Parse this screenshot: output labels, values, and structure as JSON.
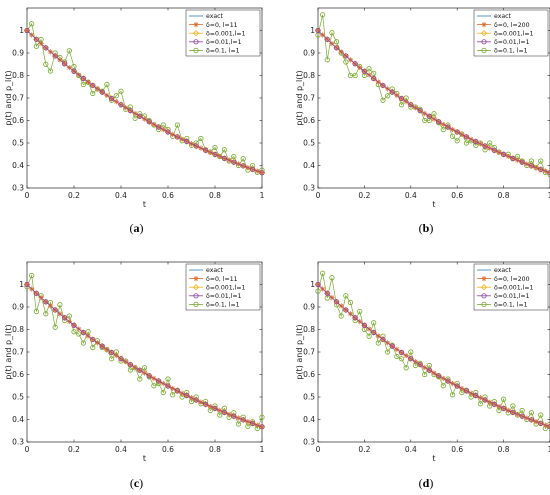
{
  "chart_data": [
    {
      "type": "line",
      "caption": "a",
      "xlabel": "t",
      "ylabel": "p(t) and p_l(t)",
      "xlim": [
        0,
        1
      ],
      "ylim": [
        0.3,
        1.1
      ],
      "x_ticks": [
        "0",
        "0.2",
        "0.4",
        "0.6",
        "0.8",
        "1"
      ],
      "y_ticks": [
        "0.3",
        "0.4",
        "0.5",
        "0.6",
        "0.7",
        "0.8",
        "0.9",
        "1"
      ],
      "legend_position": "top-right",
      "series": [
        {
          "name": "exact",
          "color": "#2f7fc1",
          "marker": "none",
          "function": "exp(-t)",
          "x": [
            0,
            0.2,
            0.4,
            0.6,
            0.8,
            1
          ],
          "values": [
            1,
            0.819,
            0.67,
            0.549,
            0.449,
            0.368
          ]
        },
        {
          "name": "δ=0, l=11",
          "color": "#e06a2b",
          "marker": "asterisk",
          "x": [
            0,
            0.2,
            0.4,
            0.6,
            0.8,
            1
          ],
          "values": [
            1,
            0.819,
            0.67,
            0.549,
            0.449,
            0.368
          ]
        },
        {
          "name": "δ=0.001,l=1",
          "color": "#f2b51e",
          "marker": "diamond",
          "x": [
            0,
            0.2,
            0.4,
            0.6,
            0.8,
            1
          ],
          "values": [
            1,
            0.819,
            0.67,
            0.549,
            0.449,
            0.368
          ]
        },
        {
          "name": "δ=0.01,l=1",
          "color": "#8e3fa1",
          "marker": "circle",
          "x": [
            0,
            0.2,
            0.4,
            0.6,
            0.8,
            1
          ],
          "values": [
            1,
            0.819,
            0.67,
            0.549,
            0.449,
            0.368
          ]
        },
        {
          "name": "δ=0.1, l=1",
          "color": "#77ac30",
          "marker": "circle",
          "x": [
            0,
            0.02,
            0.04,
            0.06,
            0.08,
            0.1,
            0.12,
            0.14,
            0.16,
            0.18,
            0.2,
            0.22,
            0.24,
            0.26,
            0.28,
            0.3,
            0.32,
            0.34,
            0.36,
            0.38,
            0.4,
            0.42,
            0.44,
            0.46,
            0.48,
            0.5,
            0.52,
            0.54,
            0.56,
            0.58,
            0.6,
            0.62,
            0.64,
            0.66,
            0.68,
            0.7,
            0.72,
            0.74,
            0.76,
            0.78,
            0.8,
            0.82,
            0.84,
            0.86,
            0.88,
            0.9,
            0.92,
            0.94,
            0.96,
            0.98,
            1
          ],
          "values": [
            1.0,
            1.03,
            0.93,
            0.96,
            0.85,
            0.82,
            0.9,
            0.88,
            0.86,
            0.91,
            0.84,
            0.8,
            0.76,
            0.77,
            0.72,
            0.74,
            0.73,
            0.76,
            0.69,
            0.71,
            0.73,
            0.65,
            0.66,
            0.61,
            0.63,
            0.62,
            0.6,
            0.58,
            0.56,
            0.58,
            0.56,
            0.53,
            0.58,
            0.51,
            0.52,
            0.49,
            0.5,
            0.52,
            0.47,
            0.46,
            0.48,
            0.44,
            0.47,
            0.42,
            0.44,
            0.4,
            0.43,
            0.38,
            0.4,
            0.37,
            0.38
          ]
        }
      ]
    },
    {
      "type": "line",
      "caption": "b",
      "xlabel": "t",
      "ylabel": "p(t) and p_l(t)",
      "xlim": [
        0,
        1
      ],
      "ylim": [
        0.3,
        1.1
      ],
      "x_ticks": [
        "0",
        "0.2",
        "0.4",
        "0.6",
        "0.8",
        "1"
      ],
      "y_ticks": [
        "0.3",
        "0.4",
        "0.5",
        "0.6",
        "0.7",
        "0.8",
        "0.9",
        "1"
      ],
      "legend_position": "top-right",
      "series": [
        {
          "name": "exact",
          "color": "#2f7fc1",
          "marker": "none",
          "function": "exp(-t)",
          "x": [
            0,
            0.2,
            0.4,
            0.6,
            0.8,
            1
          ],
          "values": [
            1,
            0.819,
            0.67,
            0.549,
            0.449,
            0.368
          ]
        },
        {
          "name": "δ=0, l=200",
          "color": "#e06a2b",
          "marker": "asterisk",
          "x": [
            0,
            0.2,
            0.4,
            0.6,
            0.8,
            1
          ],
          "values": [
            1,
            0.819,
            0.67,
            0.549,
            0.449,
            0.368
          ]
        },
        {
          "name": "δ=0.001,l=1",
          "color": "#f2b51e",
          "marker": "diamond",
          "x": [
            0,
            0.2,
            0.4,
            0.6,
            0.8,
            1
          ],
          "values": [
            1,
            0.819,
            0.67,
            0.549,
            0.449,
            0.368
          ]
        },
        {
          "name": "δ=0.01,l=1",
          "color": "#8e3fa1",
          "marker": "circle",
          "x": [
            0,
            0.2,
            0.4,
            0.6,
            0.8,
            1
          ],
          "values": [
            1,
            0.819,
            0.67,
            0.549,
            0.449,
            0.368
          ]
        },
        {
          "name": "δ=0.1, l=1",
          "color": "#77ac30",
          "marker": "circle",
          "x": [
            0,
            0.02,
            0.04,
            0.06,
            0.08,
            0.1,
            0.12,
            0.14,
            0.16,
            0.18,
            0.2,
            0.22,
            0.24,
            0.26,
            0.28,
            0.3,
            0.32,
            0.34,
            0.36,
            0.38,
            0.4,
            0.42,
            0.44,
            0.46,
            0.48,
            0.5,
            0.52,
            0.54,
            0.56,
            0.58,
            0.6,
            0.62,
            0.64,
            0.66,
            0.68,
            0.7,
            0.72,
            0.74,
            0.76,
            0.78,
            0.8,
            0.82,
            0.84,
            0.86,
            0.88,
            0.9,
            0.92,
            0.94,
            0.96,
            0.98,
            1
          ],
          "values": [
            0.98,
            1.07,
            0.87,
            0.99,
            0.95,
            0.9,
            0.86,
            0.8,
            0.8,
            0.84,
            0.8,
            0.83,
            0.81,
            0.76,
            0.69,
            0.71,
            0.74,
            0.72,
            0.67,
            0.7,
            0.66,
            0.66,
            0.65,
            0.6,
            0.6,
            0.63,
            0.59,
            0.56,
            0.58,
            0.53,
            0.51,
            0.54,
            0.5,
            0.51,
            0.49,
            0.5,
            0.47,
            0.5,
            0.48,
            0.46,
            0.45,
            0.45,
            0.43,
            0.44,
            0.42,
            0.4,
            0.42,
            0.39,
            0.42,
            0.37,
            0.36
          ]
        }
      ]
    },
    {
      "type": "line",
      "caption": "c",
      "xlabel": "t",
      "ylabel": "p(t) and p_l(t)",
      "xlim": [
        0,
        1
      ],
      "ylim": [
        0.3,
        1.1
      ],
      "x_ticks": [
        "0",
        "0.2",
        "0.4",
        "0.6",
        "0.8",
        "1"
      ],
      "y_ticks": [
        "0.3",
        "0.4",
        "0.5",
        "0.6",
        "0.7",
        "0.8",
        "0.9",
        "1"
      ],
      "legend_position": "top-right",
      "series": [
        {
          "name": "exact",
          "color": "#2f7fc1",
          "marker": "none",
          "function": "exp(-t)",
          "x": [
            0,
            0.2,
            0.4,
            0.6,
            0.8,
            1
          ],
          "values": [
            1,
            0.819,
            0.67,
            0.549,
            0.449,
            0.368
          ]
        },
        {
          "name": "δ=0, l=11",
          "color": "#e06a2b",
          "marker": "asterisk",
          "x": [
            0,
            0.2,
            0.4,
            0.6,
            0.8,
            1
          ],
          "values": [
            1,
            0.819,
            0.67,
            0.549,
            0.449,
            0.368
          ]
        },
        {
          "name": "δ=0.001,l=1",
          "color": "#f2b51e",
          "marker": "diamond",
          "x": [
            0,
            0.2,
            0.4,
            0.6,
            0.8,
            1
          ],
          "values": [
            1,
            0.819,
            0.67,
            0.549,
            0.449,
            0.368
          ]
        },
        {
          "name": "δ=0.01,l=1",
          "color": "#8e3fa1",
          "marker": "circle",
          "x": [
            0,
            0.2,
            0.4,
            0.6,
            0.8,
            1
          ],
          "values": [
            1,
            0.819,
            0.67,
            0.549,
            0.449,
            0.368
          ]
        },
        {
          "name": "δ=0.1, l=1",
          "color": "#77ac30",
          "marker": "circle",
          "x": [
            0,
            0.02,
            0.04,
            0.06,
            0.08,
            0.1,
            0.12,
            0.14,
            0.16,
            0.18,
            0.2,
            0.22,
            0.24,
            0.26,
            0.28,
            0.3,
            0.32,
            0.34,
            0.36,
            0.38,
            0.4,
            0.42,
            0.44,
            0.46,
            0.48,
            0.5,
            0.52,
            0.54,
            0.56,
            0.58,
            0.6,
            0.62,
            0.64,
            0.66,
            0.68,
            0.7,
            0.72,
            0.74,
            0.76,
            0.78,
            0.8,
            0.82,
            0.84,
            0.86,
            0.88,
            0.9,
            0.92,
            0.94,
            0.96,
            0.98,
            1
          ],
          "values": [
            0.99,
            1.04,
            0.88,
            0.95,
            0.87,
            0.92,
            0.81,
            0.91,
            0.84,
            0.86,
            0.79,
            0.78,
            0.74,
            0.79,
            0.72,
            0.75,
            0.72,
            0.71,
            0.67,
            0.7,
            0.66,
            0.66,
            0.62,
            0.63,
            0.58,
            0.63,
            0.59,
            0.55,
            0.56,
            0.52,
            0.58,
            0.51,
            0.53,
            0.5,
            0.52,
            0.48,
            0.5,
            0.47,
            0.48,
            0.44,
            0.46,
            0.42,
            0.45,
            0.41,
            0.43,
            0.38,
            0.41,
            0.37,
            0.39,
            0.36,
            0.41
          ]
        }
      ]
    },
    {
      "type": "line",
      "caption": "d",
      "xlabel": "t",
      "ylabel": "p(t) and p_l(t)",
      "xlim": [
        0,
        1
      ],
      "ylim": [
        0.3,
        1.1
      ],
      "x_ticks": [
        "0",
        "0.2",
        "0.4",
        "0.6",
        "0.8",
        "1"
      ],
      "y_ticks": [
        "0.3",
        "0.4",
        "0.5",
        "0.6",
        "0.7",
        "0.8",
        "0.9",
        "1"
      ],
      "legend_position": "top-right",
      "series": [
        {
          "name": "exact",
          "color": "#2f7fc1",
          "marker": "none",
          "function": "exp(-t)",
          "x": [
            0,
            0.2,
            0.4,
            0.6,
            0.8,
            1
          ],
          "values": [
            1,
            0.819,
            0.67,
            0.549,
            0.449,
            0.368
          ]
        },
        {
          "name": "δ=0, l=200",
          "color": "#e06a2b",
          "marker": "asterisk",
          "x": [
            0,
            0.2,
            0.4,
            0.6,
            0.8,
            1
          ],
          "values": [
            1,
            0.819,
            0.67,
            0.549,
            0.449,
            0.368
          ]
        },
        {
          "name": "δ=0.001,l=1",
          "color": "#f2b51e",
          "marker": "diamond",
          "x": [
            0,
            0.2,
            0.4,
            0.6,
            0.8,
            1
          ],
          "values": [
            1,
            0.819,
            0.67,
            0.549,
            0.449,
            0.368
          ]
        },
        {
          "name": "δ=0.01,l=1",
          "color": "#8e3fa1",
          "marker": "circle",
          "x": [
            0,
            0.2,
            0.4,
            0.6,
            0.8,
            1
          ],
          "values": [
            1,
            0.819,
            0.67,
            0.549,
            0.449,
            0.368
          ]
        },
        {
          "name": "δ=0.1, l=1",
          "color": "#77ac30",
          "marker": "circle",
          "x": [
            0,
            0.02,
            0.04,
            0.06,
            0.08,
            0.1,
            0.12,
            0.14,
            0.16,
            0.18,
            0.2,
            0.22,
            0.24,
            0.26,
            0.28,
            0.3,
            0.32,
            0.34,
            0.36,
            0.38,
            0.4,
            0.42,
            0.44,
            0.46,
            0.48,
            0.5,
            0.52,
            0.54,
            0.56,
            0.58,
            0.6,
            0.62,
            0.64,
            0.66,
            0.68,
            0.7,
            0.72,
            0.74,
            0.76,
            0.78,
            0.8,
            0.82,
            0.84,
            0.86,
            0.88,
            0.9,
            0.92,
            0.94,
            0.96,
            0.98,
            1
          ],
          "values": [
            0.97,
            1.05,
            0.94,
            1.03,
            0.91,
            0.86,
            0.95,
            0.92,
            0.84,
            0.88,
            0.8,
            0.77,
            0.83,
            0.74,
            0.77,
            0.7,
            0.73,
            0.68,
            0.67,
            0.63,
            0.7,
            0.64,
            0.65,
            0.6,
            0.64,
            0.6,
            0.59,
            0.55,
            0.58,
            0.51,
            0.56,
            0.52,
            0.53,
            0.5,
            0.52,
            0.47,
            0.5,
            0.46,
            0.48,
            0.44,
            0.49,
            0.43,
            0.46,
            0.42,
            0.44,
            0.4,
            0.43,
            0.38,
            0.42,
            0.36,
            0.38
          ]
        }
      ]
    }
  ]
}
